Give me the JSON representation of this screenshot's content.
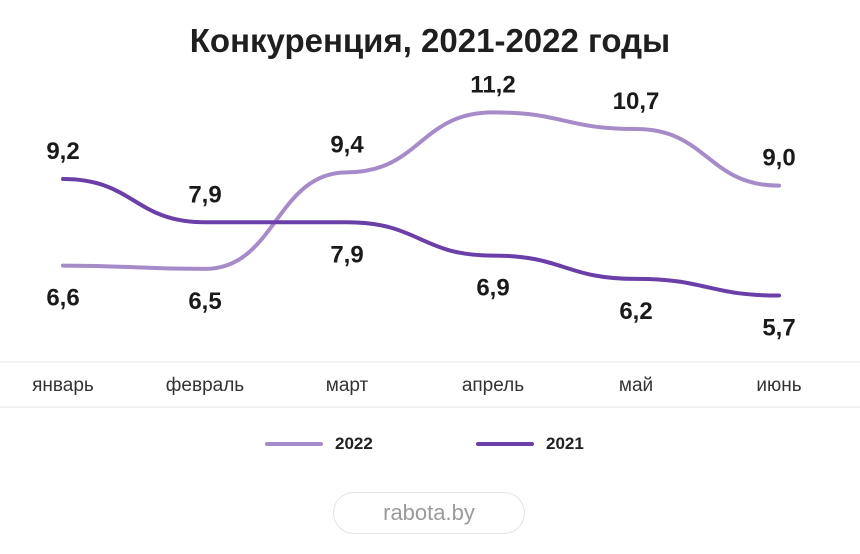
{
  "chart_data": {
    "type": "line",
    "title": "Конкуренция, 2021-2022 годы",
    "categories": [
      "январь",
      "февраль",
      "март",
      "апрель",
      "май",
      "июнь"
    ],
    "series": [
      {
        "name": "2022",
        "color": "#a68bc9",
        "values": [
          6.6,
          6.5,
          9.4,
          11.2,
          10.7,
          9.0
        ],
        "labels": [
          "6,6",
          "6,5",
          "9,4",
          "11,2",
          "10,7",
          "9,0"
        ]
      },
      {
        "name": "2021",
        "color": "#6b3fa8",
        "values": [
          9.2,
          7.9,
          7.9,
          6.9,
          6.2,
          5.7
        ],
        "labels": [
          "9,2",
          "7,9",
          "7,9",
          "6,9",
          "6,2",
          "5,7"
        ]
      }
    ],
    "legend": "bottom-center",
    "grid": false
  },
  "brand": "rabota.by"
}
